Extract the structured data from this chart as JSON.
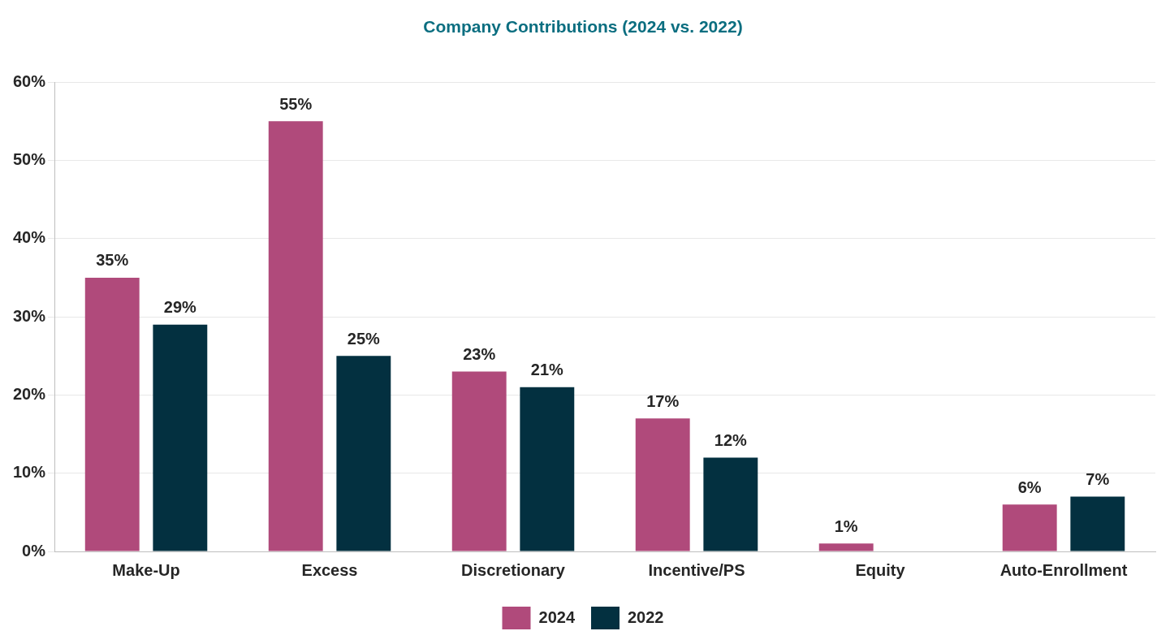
{
  "chart_data": {
    "type": "bar",
    "title": "Company Contributions (2024 vs. 2022)",
    "categories": [
      "Make-Up",
      "Excess",
      "Discretionary",
      "Incentive/PS",
      "Equity",
      "Auto-Enrollment"
    ],
    "series": [
      {
        "name": "2024",
        "color": "#b04a7b",
        "values": [
          35,
          55,
          23,
          17,
          1,
          6
        ],
        "value_labels": [
          "35%",
          "55%",
          "23%",
          "17%",
          "1%",
          "6%"
        ]
      },
      {
        "name": "2022",
        "color": "#033040",
        "values": [
          29,
          25,
          21,
          12,
          null,
          7
        ],
        "value_labels": [
          "29%",
          "25%",
          "21%",
          "12%",
          null,
          "7%"
        ]
      }
    ],
    "ylim": [
      0,
      60
    ],
    "yticks": [
      {
        "value": 0,
        "label": "0%"
      },
      {
        "value": 10,
        "label": "10%"
      },
      {
        "value": 20,
        "label": "20%"
      },
      {
        "value": 30,
        "label": "30%"
      },
      {
        "value": 40,
        "label": "40%"
      },
      {
        "value": 50,
        "label": "50%"
      },
      {
        "value": 60,
        "label": "60%"
      }
    ],
    "grid": "y",
    "legend": "bottom"
  }
}
